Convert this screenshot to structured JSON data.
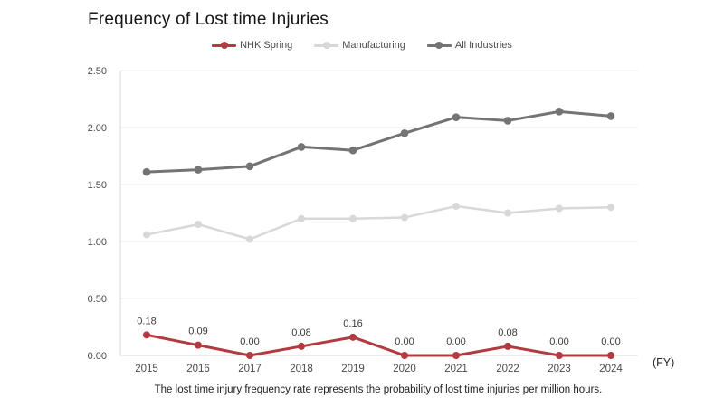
{
  "title": "Frequency of Lost time Injuries",
  "x_axis_unit": "(FY)",
  "footnote": "The lost time injury frequency rate represents the probability of lost time injuries per million hours.",
  "chart_data": {
    "type": "line",
    "title": "Frequency of Lost time Injuries",
    "categories": [
      "2015",
      "2016",
      "2017",
      "2018",
      "2019",
      "2020",
      "2021",
      "2022",
      "2023",
      "2024"
    ],
    "series": [
      {
        "name": "NHK Spring",
        "color": "#b23a40",
        "values": [
          0.18,
          0.09,
          0.0,
          0.08,
          0.16,
          0.0,
          0.0,
          0.08,
          0.0,
          0.0
        ],
        "data_labels": [
          "0.18",
          "0.09",
          "0.00",
          "0.08",
          "0.16",
          "0.00",
          "0.00",
          "0.08",
          "0.00",
          "0.00"
        ]
      },
      {
        "name": "Manufacturing",
        "color": "#d8d8d8",
        "values": [
          1.06,
          1.15,
          1.02,
          1.2,
          1.2,
          1.21,
          1.31,
          1.25,
          1.29,
          1.3
        ]
      },
      {
        "name": "All Industries",
        "color": "#747474",
        "values": [
          1.61,
          1.63,
          1.66,
          1.83,
          1.8,
          1.95,
          2.09,
          2.06,
          2.14,
          2.1
        ]
      }
    ],
    "xlabel": "(FY)",
    "ylabel": "",
    "ylim": [
      0,
      2.5
    ],
    "yticks": [
      0.0,
      0.5,
      1.0,
      1.5,
      2.0,
      2.5
    ],
    "grid": true,
    "legend_position": "top"
  }
}
